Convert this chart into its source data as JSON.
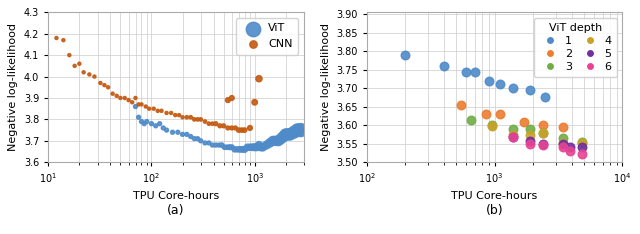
{
  "subplot_a": {
    "title": "(a)",
    "xlabel": "TPU Core-hours",
    "ylabel": "Negative log-likelihood",
    "xlim_log": [
      1,
      3.477
    ],
    "ylim": [
      3.6,
      4.3
    ],
    "yticks": [
      3.6,
      3.7,
      3.8,
      3.9,
      4.0,
      4.1,
      4.2,
      4.3
    ],
    "vit_points": [
      [
        70,
        3.86
      ],
      [
        75,
        3.81
      ],
      [
        80,
        3.79
      ],
      [
        85,
        3.78
      ],
      [
        90,
        3.79
      ],
      [
        100,
        3.78
      ],
      [
        110,
        3.77
      ],
      [
        120,
        3.78
      ],
      [
        130,
        3.76
      ],
      [
        140,
        3.75
      ],
      [
        160,
        3.74
      ],
      [
        180,
        3.74
      ],
      [
        200,
        3.73
      ],
      [
        220,
        3.73
      ],
      [
        240,
        3.72
      ],
      [
        260,
        3.71
      ],
      [
        280,
        3.71
      ],
      [
        300,
        3.7
      ],
      [
        330,
        3.69
      ],
      [
        360,
        3.69
      ],
      [
        390,
        3.68
      ],
      [
        420,
        3.68
      ],
      [
        450,
        3.68
      ],
      [
        480,
        3.68
      ],
      [
        510,
        3.67
      ],
      [
        540,
        3.67
      ],
      [
        570,
        3.67
      ],
      [
        600,
        3.67
      ],
      [
        640,
        3.66
      ],
      [
        680,
        3.66
      ],
      [
        720,
        3.66
      ],
      [
        760,
        3.66
      ],
      [
        800,
        3.66
      ],
      [
        850,
        3.67
      ],
      [
        900,
        3.67
      ],
      [
        950,
        3.67
      ],
      [
        1000,
        3.67
      ],
      [
        1050,
        3.67
      ],
      [
        1100,
        3.68
      ],
      [
        1150,
        3.67
      ],
      [
        1200,
        3.67
      ],
      [
        1300,
        3.68
      ],
      [
        1400,
        3.69
      ],
      [
        1500,
        3.7
      ],
      [
        1600,
        3.7
      ],
      [
        1700,
        3.7
      ],
      [
        1800,
        3.71
      ],
      [
        1900,
        3.72
      ],
      [
        2000,
        3.73
      ],
      [
        2100,
        3.73
      ],
      [
        2200,
        3.73
      ],
      [
        2400,
        3.74
      ],
      [
        2600,
        3.75
      ],
      [
        2800,
        3.75
      ]
    ],
    "vit_sizes": [
      8,
      8,
      8,
      8,
      8,
      8,
      8,
      8,
      8,
      8,
      8,
      8,
      8,
      8,
      8,
      8,
      8,
      8,
      8,
      8,
      8,
      8,
      8,
      10,
      10,
      10,
      12,
      12,
      14,
      14,
      16,
      16,
      18,
      20,
      20,
      22,
      24,
      24,
      26,
      26,
      28,
      32,
      36,
      40,
      44,
      48,
      52,
      56,
      62,
      62,
      66,
      72,
      80,
      88
    ],
    "vit_color": "#4f8bc9",
    "cnn_points": [
      [
        12,
        4.18
      ],
      [
        14,
        4.17
      ],
      [
        16,
        4.1
      ],
      [
        18,
        4.05
      ],
      [
        20,
        4.06
      ],
      [
        22,
        4.02
      ],
      [
        25,
        4.01
      ],
      [
        28,
        4.0
      ],
      [
        32,
        3.97
      ],
      [
        35,
        3.96
      ],
      [
        38,
        3.95
      ],
      [
        42,
        3.92
      ],
      [
        46,
        3.91
      ],
      [
        50,
        3.9
      ],
      [
        55,
        3.9
      ],
      [
        60,
        3.89
      ],
      [
        65,
        3.88
      ],
      [
        70,
        3.9
      ],
      [
        75,
        3.87
      ],
      [
        80,
        3.87
      ],
      [
        88,
        3.86
      ],
      [
        95,
        3.85
      ],
      [
        105,
        3.85
      ],
      [
        115,
        3.84
      ],
      [
        125,
        3.84
      ],
      [
        140,
        3.83
      ],
      [
        155,
        3.83
      ],
      [
        170,
        3.82
      ],
      [
        185,
        3.82
      ],
      [
        200,
        3.81
      ],
      [
        220,
        3.81
      ],
      [
        240,
        3.81
      ],
      [
        260,
        3.8
      ],
      [
        280,
        3.8
      ],
      [
        300,
        3.8
      ],
      [
        330,
        3.79
      ],
      [
        360,
        3.78
      ],
      [
        390,
        3.78
      ],
      [
        420,
        3.78
      ],
      [
        460,
        3.77
      ],
      [
        500,
        3.77
      ],
      [
        550,
        3.76
      ],
      [
        600,
        3.76
      ],
      [
        650,
        3.76
      ],
      [
        700,
        3.75
      ],
      [
        750,
        3.75
      ],
      [
        800,
        3.75
      ],
      [
        900,
        3.76
      ],
      [
        1000,
        3.88
      ],
      [
        1100,
        3.99
      ],
      [
        550,
        3.89
      ],
      [
        600,
        3.9
      ]
    ],
    "cnn_sizes": [
      5,
      5,
      5,
      5,
      5,
      5,
      5,
      5,
      5,
      5,
      5,
      5,
      5,
      5,
      5,
      5,
      5,
      5,
      5,
      5,
      5,
      5,
      5,
      5,
      5,
      5,
      5,
      5,
      5,
      5,
      6,
      6,
      6,
      6,
      6,
      6,
      6,
      6,
      8,
      8,
      8,
      8,
      8,
      8,
      10,
      10,
      10,
      12,
      16,
      20,
      12,
      12
    ],
    "cnn_color": "#c55a11"
  },
  "subplot_b": {
    "title": "(b)",
    "xlabel": "TPU Core-hours",
    "ylabel": "Negative log-likelihood",
    "xlim": [
      100,
      10000
    ],
    "ylim": [
      3.5,
      3.9
    ],
    "yticks": [
      3.5,
      3.55,
      3.6,
      3.65,
      3.7,
      3.75,
      3.8,
      3.85,
      3.9
    ],
    "depth_colors": {
      "1": "#4f8bc9",
      "2": "#ed7d31",
      "3": "#70ad47",
      "4": "#c9a227",
      "5": "#7030a0",
      "6": "#e84393"
    },
    "depth_points": {
      "1": [
        [
          200,
          3.79
        ],
        [
          400,
          3.76
        ],
        [
          600,
          3.745
        ],
        [
          700,
          3.745
        ],
        [
          900,
          3.72
        ],
        [
          1100,
          3.71
        ],
        [
          1400,
          3.7
        ],
        [
          1900,
          3.695
        ],
        [
          2500,
          3.677
        ]
      ],
      "2": [
        [
          550,
          3.655
        ],
        [
          850,
          3.63
        ],
        [
          1100,
          3.63
        ],
        [
          1700,
          3.61
        ],
        [
          2400,
          3.6
        ],
        [
          3400,
          3.595
        ]
      ],
      "3": [
        [
          650,
          3.615
        ],
        [
          950,
          3.6
        ],
        [
          1400,
          3.59
        ],
        [
          1900,
          3.59
        ],
        [
          2400,
          3.578
        ],
        [
          3400,
          3.565
        ],
        [
          4800,
          3.555
        ]
      ],
      "4": [
        [
          950,
          3.598
        ],
        [
          1400,
          3.573
        ],
        [
          1900,
          3.573
        ],
        [
          2400,
          3.578
        ],
        [
          3400,
          3.553
        ],
        [
          4800,
          3.553
        ]
      ],
      "5": [
        [
          1400,
          3.568
        ],
        [
          1900,
          3.557
        ],
        [
          2400,
          3.549
        ],
        [
          3400,
          3.549
        ],
        [
          3900,
          3.541
        ],
        [
          4800,
          3.541
        ]
      ],
      "6": [
        [
          1400,
          3.568
        ],
        [
          1900,
          3.549
        ],
        [
          2400,
          3.547
        ],
        [
          3400,
          3.541
        ],
        [
          3900,
          3.531
        ],
        [
          4800,
          3.522
        ]
      ]
    },
    "dot_size": 38,
    "legend_title": "ViT depth"
  }
}
